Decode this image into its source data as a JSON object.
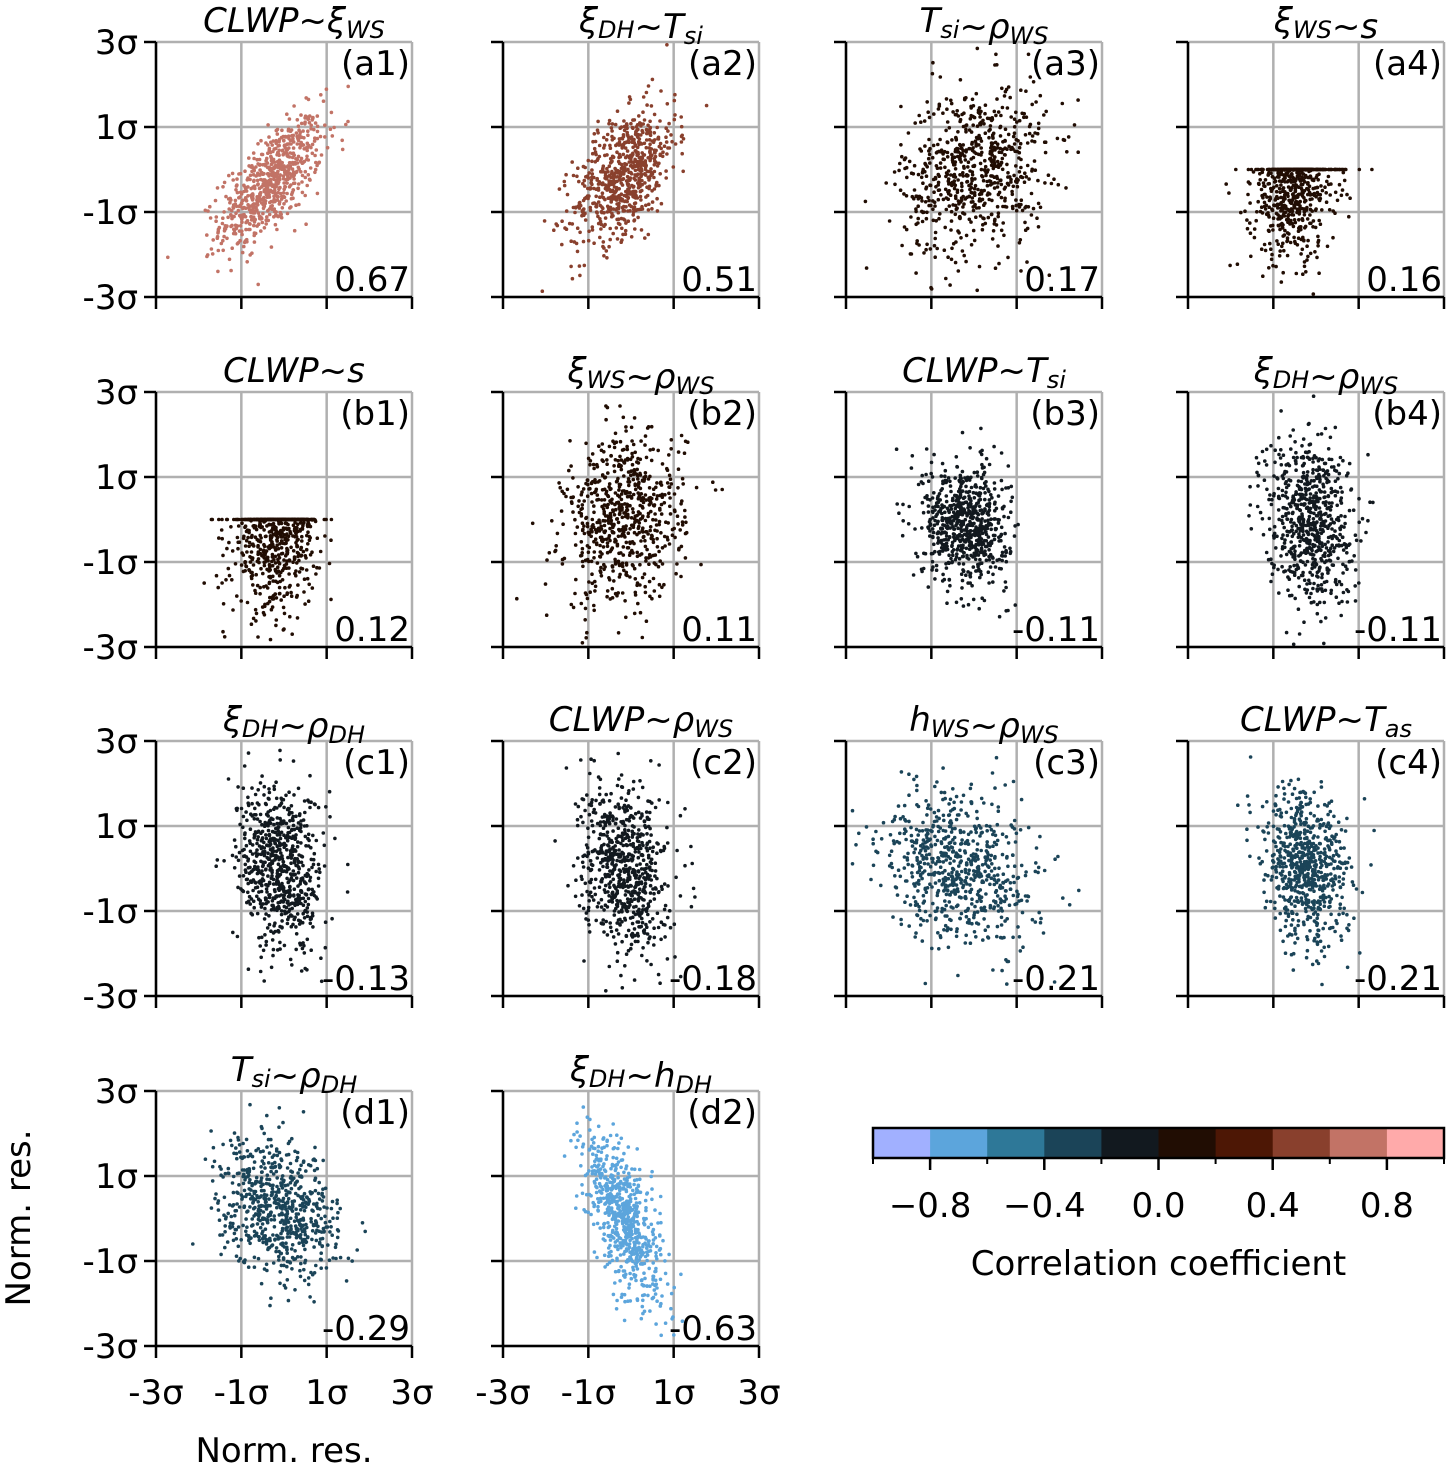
{
  "chart_data": {
    "type": "scatter",
    "xlabel": "Norm. res.",
    "ylabel": "Norm. res.",
    "xlim": [
      -3,
      3
    ],
    "ylim": [
      -3,
      3
    ],
    "grid": true,
    "tick_values": [
      -3,
      -1,
      1,
      3
    ],
    "tick_labels": [
      "-3σ",
      "-1σ",
      "1σ",
      "3σ"
    ],
    "panels": [
      {
        "id": "a1",
        "label": "(a1)",
        "title": [
          {
            "t": "CLWP~ξ",
            "sub": "WS"
          }
        ],
        "r": 0.67,
        "r_label": "0.67",
        "dist": {
          "cx": -0.3,
          "cy": -0.3,
          "sx": 0.6,
          "sy": 0.75
        }
      },
      {
        "id": "a2",
        "label": "(a2)",
        "title": [
          {
            "t": "ξ",
            "sub": "DH"
          },
          {
            "t": "~T",
            "sub": "si"
          }
        ],
        "r": 0.51,
        "r_label": "0.51",
        "dist": {
          "cx": -0.15,
          "cy": -0.1,
          "sx": 0.6,
          "sy": 0.8
        }
      },
      {
        "id": "a3",
        "label": "(a3)",
        "title": [
          {
            "t": "T",
            "sub": "si"
          },
          {
            "t": "~ρ",
            "sub": "WS"
          }
        ],
        "r": 0.17,
        "r_label": "0.17",
        "dist": {
          "cx": 0.0,
          "cy": 0.0,
          "sx": 0.85,
          "sy": 1.0
        }
      },
      {
        "id": "a4",
        "label": "(a4)",
        "title": [
          {
            "t": "ξ",
            "sub": "WS"
          },
          {
            "t": "~s",
            "sub": ""
          }
        ],
        "r": 0.16,
        "r_label": "0.16",
        "dist": {
          "cx": -0.5,
          "cy": -0.3,
          "sx": 0.5,
          "sy": 0.9,
          "ymax": 0
        }
      },
      {
        "id": "b1",
        "label": "(b1)",
        "title": [
          {
            "t": "CLWP~s",
            "sub": ""
          }
        ],
        "r": 0.12,
        "r_label": "0.12",
        "dist": {
          "cx": -0.2,
          "cy": -0.3,
          "sx": 0.5,
          "sy": 0.9,
          "ymax": 0
        }
      },
      {
        "id": "b2",
        "label": "(b2)",
        "title": [
          {
            "t": "ξ",
            "sub": "WS"
          },
          {
            "t": "~ρ",
            "sub": "WS"
          }
        ],
        "r": 0.11,
        "r_label": "0.11",
        "dist": {
          "cx": -0.15,
          "cy": 0.0,
          "sx": 0.7,
          "sy": 1.0
        }
      },
      {
        "id": "b3",
        "label": "(b3)",
        "title": [
          {
            "t": "CLWP~T",
            "sub": "si"
          }
        ],
        "r": -0.11,
        "r_label": "-0.11",
        "dist": {
          "cx": -0.2,
          "cy": -0.1,
          "sx": 0.5,
          "sy": 0.7
        }
      },
      {
        "id": "b4",
        "label": "(b4)",
        "title": [
          {
            "t": "ξ",
            "sub": "DH"
          },
          {
            "t": "~ρ",
            "sub": "WS"
          }
        ],
        "r": -0.11,
        "r_label": "-0.11",
        "dist": {
          "cx": -0.15,
          "cy": 0.0,
          "sx": 0.5,
          "sy": 1.0
        }
      },
      {
        "id": "c1",
        "label": "(c1)",
        "title": [
          {
            "t": "ξ",
            "sub": "DH"
          },
          {
            "t": "~ρ",
            "sub": "DH"
          }
        ],
        "r": -0.13,
        "r_label": "-0.13",
        "dist": {
          "cx": -0.1,
          "cy": 0.0,
          "sx": 0.5,
          "sy": 1.0
        }
      },
      {
        "id": "c2",
        "label": "(c2)",
        "title": [
          {
            "t": "CLWP~ρ",
            "sub": "WS"
          }
        ],
        "r": -0.18,
        "r_label": "-0.18",
        "dist": {
          "cx": -0.15,
          "cy": 0.0,
          "sx": 0.5,
          "sy": 1.0
        }
      },
      {
        "id": "c3",
        "label": "(c3)",
        "title": [
          {
            "t": "h",
            "sub": "WS"
          },
          {
            "t": "~ρ",
            "sub": "WS"
          }
        ],
        "r": -0.21,
        "r_label": "-0.21",
        "dist": {
          "cx": -0.3,
          "cy": 0.0,
          "sx": 0.9,
          "sy": 0.9
        }
      },
      {
        "id": "c4",
        "label": "(c4)",
        "title": [
          {
            "t": "CLWP~T",
            "sub": "as"
          }
        ],
        "r": -0.21,
        "r_label": "-0.21",
        "dist": {
          "cx": -0.25,
          "cy": 0.0,
          "sx": 0.5,
          "sy": 0.9
        }
      },
      {
        "id": "d1",
        "label": "(d1)",
        "title": [
          {
            "t": "T",
            "sub": "si"
          },
          {
            "t": "~ρ",
            "sub": "DH"
          }
        ],
        "r": -0.29,
        "r_label": "-0.29",
        "dist": {
          "cx": -0.1,
          "cy": 0.2,
          "sx": 0.7,
          "sy": 0.8
        }
      },
      {
        "id": "d2",
        "label": "(d2)",
        "title": [
          {
            "t": "ξ",
            "sub": "DH"
          },
          {
            "t": "~h",
            "sub": "DH"
          }
        ],
        "r": -0.63,
        "r_label": "-0.63",
        "dist": {
          "cx": -0.15,
          "cy": 0.0,
          "sx": 0.45,
          "sy": 1.0
        }
      }
    ],
    "colorbar": {
      "label": "Correlation coefficient",
      "range": [
        -1,
        1
      ],
      "bins": [
        -1,
        -0.8,
        -0.6,
        -0.4,
        -0.2,
        0,
        0.2,
        0.4,
        0.6,
        0.8,
        1
      ],
      "colors": [
        "#a1b0ff",
        "#5ca5dc",
        "#2e7898",
        "#1b4458",
        "#12191f",
        "#210d03",
        "#4d1705",
        "#89402d",
        "#c27366",
        "#ffaaaa"
      ],
      "tick_values": [
        -0.8,
        -0.4,
        0.0,
        0.4,
        0.8
      ],
      "tick_labels": [
        "−0.8",
        "−0.4",
        "0.0",
        "0.4",
        "0.8"
      ]
    }
  }
}
